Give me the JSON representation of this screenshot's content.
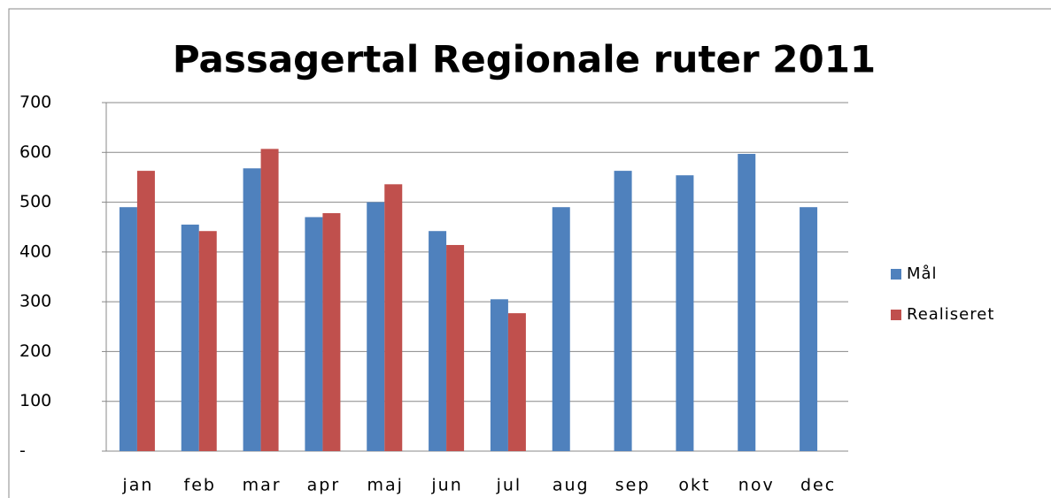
{
  "chart_data": {
    "type": "bar",
    "title": "Passagertal Regionale ruter 2011",
    "categories": [
      "jan",
      "feb",
      "mar",
      "apr",
      "maj",
      "jun",
      "jul",
      "aug",
      "sep",
      "okt",
      "nov",
      "dec"
    ],
    "series": [
      {
        "name": "Mål",
        "color": "#4f81bd",
        "values": [
          490,
          455,
          568,
          470,
          500,
          442,
          305,
          490,
          563,
          554,
          597,
          490
        ]
      },
      {
        "name": "Realiseret",
        "color": "#c0504d",
        "values": [
          563,
          442,
          607,
          478,
          536,
          414,
          277,
          null,
          null,
          null,
          null,
          null
        ]
      }
    ],
    "ylim": [
      0,
      700
    ],
    "yticks": [
      {
        "value": 0,
        "label": "-"
      },
      100,
      200,
      300,
      400,
      500,
      600,
      700
    ],
    "grid": true,
    "legend": "right"
  }
}
